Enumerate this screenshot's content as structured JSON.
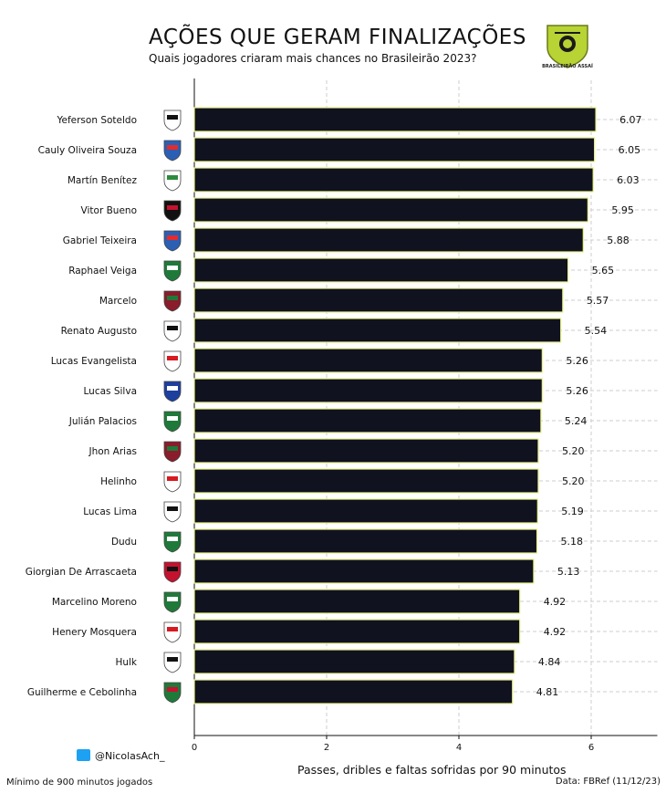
{
  "header": {
    "title": "AÇÕES QUE GERAM FINALIZAÇÕES",
    "subtitle": "Quais jogadores criaram mais chances no Brasileirão 2023?",
    "logo_text": "BRASILEIRÃO ASSAÍ"
  },
  "footer": {
    "handle": "@NicolasAch_",
    "note": "Mínimo de 900 minutos jogados",
    "source": "Data: FBRef (11/12/23)"
  },
  "colors": {
    "bar": "#11121f",
    "bar_border": "#e8f28a",
    "grid": "#cccccc",
    "logo_green": "#b7d334"
  },
  "chart_data": {
    "type": "bar",
    "orientation": "horizontal",
    "title": "AÇÕES QUE GERAM FINALIZAÇÕES",
    "subtitle": "Quais jogadores criaram mais chances no Brasileirão 2023?",
    "xlabel": "Passes, dribles e faltas sofridas por 90 minutos",
    "ylabel": "",
    "xlim": [
      0,
      7
    ],
    "xticks": [
      0,
      2,
      4,
      6
    ],
    "grid": true,
    "categories": [
      "Yeferson Soteldo",
      "Cauly Oliveira Souza",
      "Martín Benítez",
      "Vitor Bueno",
      "Gabriel Teixeira",
      "Raphael Veiga",
      "Marcelo",
      "Renato Augusto",
      "Lucas Evangelista",
      "Lucas Silva",
      "Julián Palacios",
      "Jhon Arias",
      "Helinho",
      "Lucas Lima",
      "Dudu",
      "Giorgian De Arrascaeta",
      "Marcelino Moreno",
      "Henery Mosquera",
      "Hulk",
      "Guilherme e Cebolinha"
    ],
    "values": [
      6.07,
      6.05,
      6.03,
      5.95,
      5.88,
      5.65,
      5.57,
      5.54,
      5.26,
      5.26,
      5.24,
      5.2,
      5.2,
      5.19,
      5.18,
      5.13,
      4.92,
      4.92,
      4.84,
      4.81
    ],
    "value_labels": [
      "6.07",
      "6.05",
      "6.03",
      "5.95",
      "5.88",
      "5.65",
      "5.57",
      "5.54",
      "5.26",
      "5.26",
      "5.24",
      "5.20",
      "5.20",
      "5.19",
      "5.18",
      "5.13",
      "4.92",
      "4.92",
      "4.84",
      "4.81"
    ],
    "crest_colors": [
      [
        "#ffffff",
        "#111111"
      ],
      [
        "#2b5fb4",
        "#e52b2b"
      ],
      [
        "#ffffff",
        "#2e8b3c"
      ],
      [
        "#111111",
        "#c4122f"
      ],
      [
        "#2b5fb4",
        "#e52b2b"
      ],
      [
        "#1f7a3a",
        "#ffffff"
      ],
      [
        "#8a1c2b",
        "#1f7a3a"
      ],
      [
        "#ffffff",
        "#111111"
      ],
      [
        "#ffffff",
        "#d71920"
      ],
      [
        "#1d3f9e",
        "#ffffff"
      ],
      [
        "#1f7a3a",
        "#ffffff"
      ],
      [
        "#8a1c2b",
        "#1f7a3a"
      ],
      [
        "#ffffff",
        "#d71920"
      ],
      [
        "#ffffff",
        "#111111"
      ],
      [
        "#1f7a3a",
        "#ffffff"
      ],
      [
        "#c4122f",
        "#111111"
      ],
      [
        "#1f7a3a",
        "#ffffff"
      ],
      [
        "#ffffff",
        "#d71920"
      ],
      [
        "#ffffff",
        "#111111"
      ],
      [
        "#1f7a3a",
        "#c4122f"
      ]
    ]
  }
}
